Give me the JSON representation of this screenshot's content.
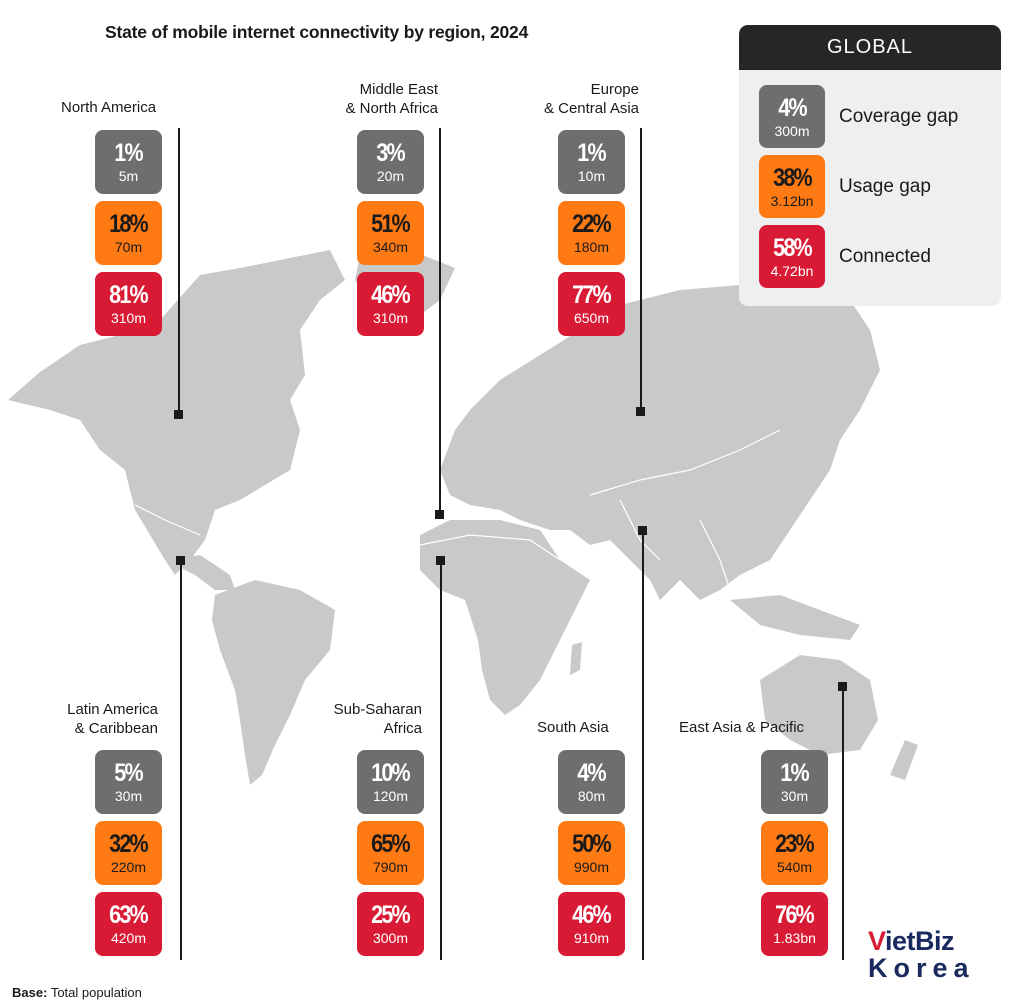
{
  "title": "State of mobile internet connectivity by region, 2024",
  "global": {
    "heading": "GLOBAL",
    "coverage": {
      "pct": "4%",
      "count": "300m",
      "label": "Coverage gap"
    },
    "usage": {
      "pct": "38%",
      "count": "3.12bn",
      "label": "Usage gap"
    },
    "connected": {
      "pct": "58%",
      "count": "4.72bn",
      "label": "Connected"
    }
  },
  "regions": {
    "north_america": {
      "name1": "North America",
      "name2": "",
      "coverage": {
        "pct": "1%",
        "count": "5m"
      },
      "usage": {
        "pct": "18%",
        "count": "70m"
      },
      "connected": {
        "pct": "81%",
        "count": "310m"
      }
    },
    "mena": {
      "name1": "Middle East",
      "name2": "& North Africa",
      "coverage": {
        "pct": "3%",
        "count": "20m"
      },
      "usage": {
        "pct": "51%",
        "count": "340m"
      },
      "connected": {
        "pct": "46%",
        "count": "310m"
      }
    },
    "europe_ca": {
      "name1": "Europe",
      "name2": "& Central Asia",
      "coverage": {
        "pct": "1%",
        "count": "10m"
      },
      "usage": {
        "pct": "22%",
        "count": "180m"
      },
      "connected": {
        "pct": "77%",
        "count": "650m"
      }
    },
    "latam": {
      "name1": "Latin America",
      "name2": "& Caribbean",
      "coverage": {
        "pct": "5%",
        "count": "30m"
      },
      "usage": {
        "pct": "32%",
        "count": "220m"
      },
      "connected": {
        "pct": "63%",
        "count": "420m"
      }
    },
    "ssa": {
      "name1": "Sub-Saharan",
      "name2": "Africa",
      "coverage": {
        "pct": "10%",
        "count": "120m"
      },
      "usage": {
        "pct": "65%",
        "count": "790m"
      },
      "connected": {
        "pct": "25%",
        "count": "300m"
      }
    },
    "south_asia": {
      "name1": "South Asia",
      "name2": "",
      "coverage": {
        "pct": "4%",
        "count": "80m"
      },
      "usage": {
        "pct": "50%",
        "count": "990m"
      },
      "connected": {
        "pct": "46%",
        "count": "910m"
      }
    },
    "eap": {
      "name1": "East Asia & Pacific",
      "name2": "",
      "coverage": {
        "pct": "1%",
        "count": "30m"
      },
      "usage": {
        "pct": "23%",
        "count": "540m"
      },
      "connected": {
        "pct": "76%",
        "count": "1.83bn"
      }
    }
  },
  "footer": {
    "base_label": "Base:",
    "base_text": "Total population"
  },
  "logo": {
    "v": "V",
    "rest": "ietBiz",
    "bottom": "Korea"
  },
  "colors": {
    "coverage_gap": "#6d6e6e",
    "usage_gap": "#ff7a12",
    "connected": "#d91a34",
    "land": "#c8caca",
    "global_header": "#262626"
  }
}
